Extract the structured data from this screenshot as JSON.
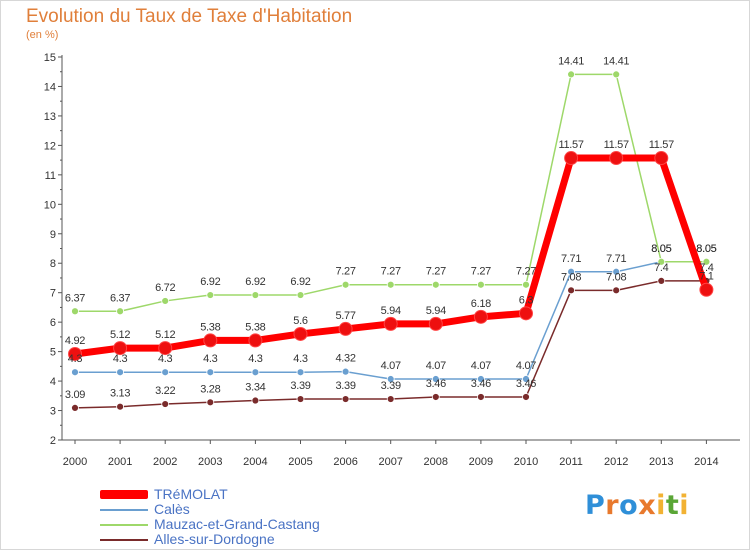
{
  "title": "Evolution du Taux de Taxe d'Habitation",
  "subtitle": "(en %)",
  "logo_text": "Proxiti",
  "chart_data": {
    "type": "line",
    "title": "Evolution du Taux de Taxe d'Habitation",
    "ylabel": "(en %)",
    "x": [
      "2000",
      "2001",
      "2002",
      "2003",
      "2004",
      "2005",
      "2006",
      "2007",
      "2008",
      "2009",
      "2010",
      "2011",
      "2012",
      "2013",
      "2014"
    ],
    "ylim": [
      2,
      15
    ],
    "yticks": [
      "2",
      "3",
      "4",
      "5",
      "6",
      "7",
      "8",
      "9",
      "10",
      "11",
      "12",
      "13",
      "14",
      "15"
    ],
    "grid": false,
    "legend_position": "bottom-left",
    "series": [
      {
        "name": "TRéMOLAT",
        "color": "#ff0000",
        "values": [
          4.92,
          5.12,
          5.12,
          5.38,
          5.38,
          5.6,
          5.77,
          5.94,
          5.94,
          6.18,
          6.3,
          11.57,
          11.57,
          11.57,
          7.1
        ],
        "labels": [
          "4.92",
          "5.12",
          "5.12",
          "5.38",
          "5.38",
          "5.6",
          "5.77",
          "5.94",
          "5.94",
          "6.18",
          "6.3",
          "11.57",
          "11.57",
          "11.57",
          "7.1"
        ]
      },
      {
        "name": "Calès",
        "color": "#6a9fd0",
        "values": [
          4.3,
          4.3,
          4.3,
          4.3,
          4.3,
          4.3,
          4.32,
          4.07,
          4.07,
          4.07,
          4.07,
          7.71,
          7.71,
          8.05,
          8.05
        ],
        "labels": [
          "4.3",
          "4.3",
          "4.3",
          "4.3",
          "4.3",
          "4.3",
          "4.32",
          "4.07",
          "4.07",
          "4.07",
          "4.07",
          "7.71",
          "7.71",
          "8.05",
          "8.05"
        ]
      },
      {
        "name": "Mauzac-et-Grand-Castang",
        "color": "#9ed86a",
        "values": [
          6.37,
          6.37,
          6.72,
          6.92,
          6.92,
          6.92,
          7.27,
          7.27,
          7.27,
          7.27,
          7.27,
          14.41,
          14.41,
          8.05,
          8.05
        ],
        "labels": [
          "6.37",
          "6.37",
          "6.72",
          "6.92",
          "6.92",
          "6.92",
          "7.27",
          "7.27",
          "7.27",
          "7.27",
          "7.27",
          "14.41",
          "14.41",
          "8.05",
          "8.05"
        ]
      },
      {
        "name": "Alles-sur-Dordogne",
        "color": "#7a2b2b",
        "values": [
          3.09,
          3.13,
          3.22,
          3.28,
          3.34,
          3.39,
          3.39,
          3.39,
          3.46,
          3.46,
          3.46,
          7.08,
          7.08,
          7.4,
          7.4
        ],
        "labels": [
          "3.09",
          "3.13",
          "3.22",
          "3.28",
          "3.34",
          "3.39",
          "3.39",
          "3.39",
          "3.46",
          "3.46",
          "3.46",
          "7.08",
          "7.08",
          "7.4",
          "7.4"
        ]
      }
    ]
  }
}
